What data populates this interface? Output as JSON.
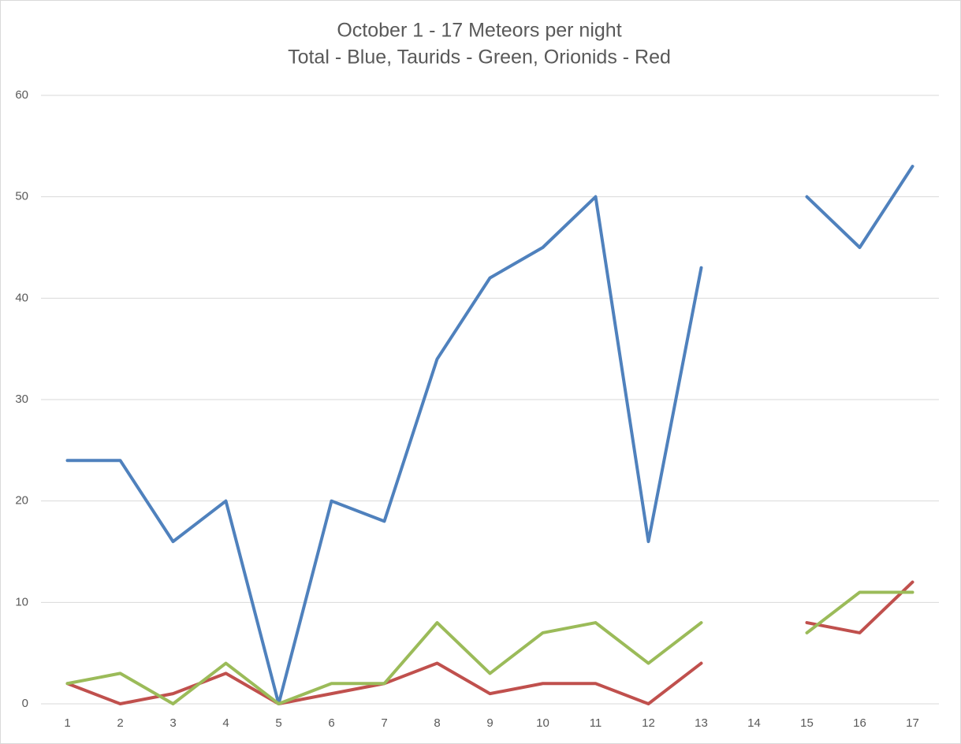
{
  "chart_data": {
    "type": "line",
    "title": "October 1 - 17 Meteors per night",
    "subtitle": "Total - Blue, Taurids - Green, Orionids - Red",
    "categories": [
      1,
      2,
      3,
      4,
      5,
      6,
      7,
      8,
      9,
      10,
      11,
      12,
      13,
      14,
      15,
      16,
      17
    ],
    "series": [
      {
        "color": "#4f81bd",
        "values": [
          24,
          24,
          16,
          20,
          0,
          20,
          18,
          34,
          42,
          45,
          50,
          16,
          43,
          null,
          50,
          45,
          53
        ]
      },
      {
        "color": "#c0504d",
        "values": [
          2,
          0,
          1,
          3,
          0,
          1,
          2,
          4,
          1,
          2,
          2,
          0,
          4,
          null,
          8,
          7,
          12
        ]
      },
      {
        "color": "#9bbb59",
        "values": [
          2,
          3,
          0,
          4,
          0,
          2,
          2,
          8,
          3,
          7,
          8,
          4,
          8,
          null,
          7,
          11,
          11
        ]
      }
    ],
    "ylim": [
      0,
      60
    ],
    "yticks": [
      0,
      10,
      20,
      30,
      40,
      50,
      60
    ],
    "grid": true
  }
}
